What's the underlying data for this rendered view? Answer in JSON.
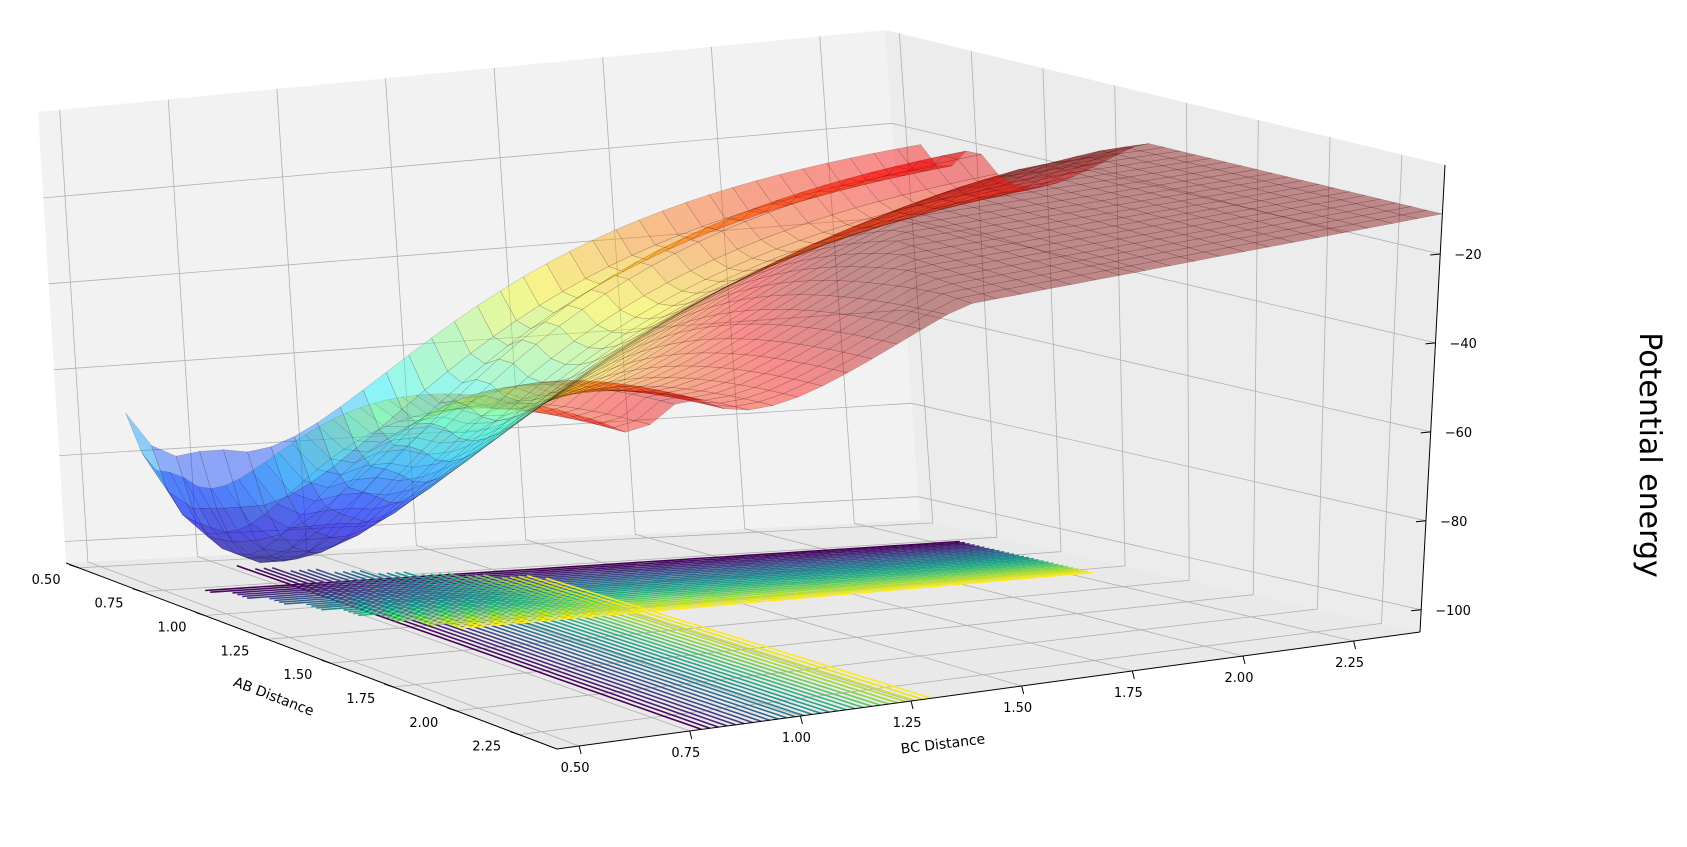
{
  "chart_data": {
    "type": "surface3d",
    "title": "",
    "xlabel": "AB Distance",
    "ylabel": "BC Distance",
    "zlabel": "Potential energy",
    "x_ticks": [
      "0.50",
      "0.75",
      "1.00",
      "1.25",
      "1.50",
      "1.75",
      "2.00",
      "2.25"
    ],
    "y_ticks": [
      "0.50",
      "0.75",
      "1.00",
      "1.25",
      "1.50",
      "1.75",
      "2.00",
      "2.25"
    ],
    "z_ticks": [
      "−100",
      "−80",
      "−60",
      "−40",
      "−20"
    ],
    "xlim": [
      0.45,
      2.4
    ],
    "ylim": [
      0.45,
      2.4
    ],
    "zlim": [
      -105,
      0
    ],
    "grid": true,
    "surface_colormap": "jet",
    "contour_colormap": "viridis",
    "surface": {
      "description_values": {
        "plateau_energy": -15,
        "valley_minimum_energy": -100,
        "saddle_energy": -68,
        "equilibrium_distance": 0.74
      }
    }
  }
}
